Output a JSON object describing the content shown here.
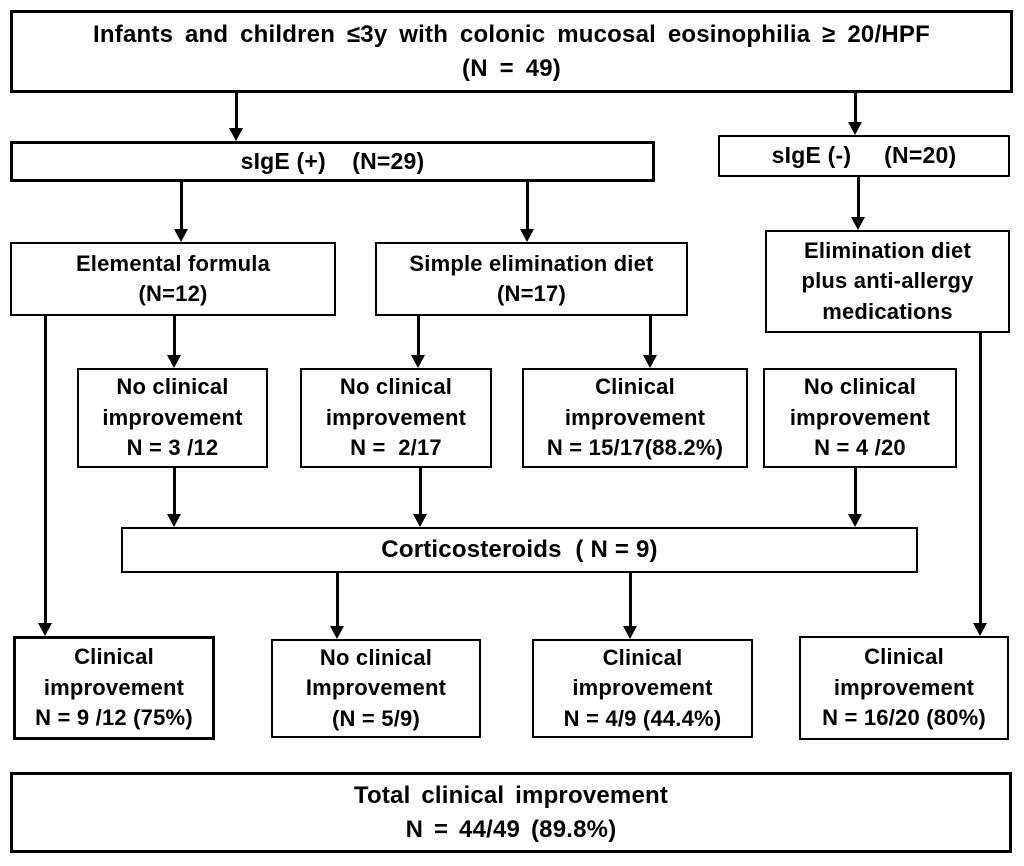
{
  "figure": {
    "background_color": "#ffffff",
    "line_color": "#000000",
    "text_color": "#000000"
  },
  "nodes": {
    "title": "Infants and children ≤3y with colonic mucosal eosinophilia ≥ 20/HPF\n(N = 49)",
    "sige_positive": "sIgE (+)    (N=29)",
    "sige_negative": "sIgE (-)     (N=20)",
    "elemental_formula": "Elemental formula\n(N=12)",
    "simple_elimination": "Simple elimination diet\n(N=17)",
    "elimination_diet_meds": "Elimination diet\nplus anti-allergy\nmedications",
    "no_improvement_3_12": "No clinical\nimprovement\nN = 3 /12",
    "no_improvement_2_17": "No clinical\nimprovement\nN =  2/17",
    "improvement_15_17": "Clinical\nimprovement\nN = 15/17(88.2%)",
    "no_improvement_4_20": "No clinical\nimprovement\nN = 4 /20",
    "corticosteroids": "Corticosteroids  ( N = 9)",
    "improvement_9_12": "Clinical\nimprovement\nN = 9 /12 (75%)",
    "no_improvement_5_9": "No clinical\nImprovement\n(N = 5/9)",
    "improvement_4_9": "Clinical\nimprovement\nN = 4/9 (44.4%)",
    "improvement_16_20": "Clinical\nimprovement\nN = 16/20 (80%)",
    "total": "Total clinical improvement\nN = 44/49 (89.8%)"
  },
  "edges": [
    {
      "from": "title",
      "to": "sige_positive"
    },
    {
      "from": "title",
      "to": "sige_negative"
    },
    {
      "from": "sige_positive",
      "to": "elemental_formula"
    },
    {
      "from": "sige_positive",
      "to": "simple_elimination"
    },
    {
      "from": "sige_negative",
      "to": "elimination_diet_meds"
    },
    {
      "from": "elemental_formula",
      "to": "no_improvement_3_12"
    },
    {
      "from": "elemental_formula",
      "to": "improvement_9_12"
    },
    {
      "from": "simple_elimination",
      "to": "no_improvement_2_17"
    },
    {
      "from": "simple_elimination",
      "to": "improvement_15_17"
    },
    {
      "from": "elimination_diet_meds",
      "to": "no_improvement_4_20"
    },
    {
      "from": "elimination_diet_meds",
      "to": "improvement_16_20"
    },
    {
      "from": "no_improvement_3_12",
      "to": "corticosteroids"
    },
    {
      "from": "no_improvement_2_17",
      "to": "corticosteroids"
    },
    {
      "from": "no_improvement_4_20",
      "to": "corticosteroids"
    },
    {
      "from": "corticosteroids",
      "to": "no_improvement_5_9"
    },
    {
      "from": "corticosteroids",
      "to": "improvement_4_9"
    }
  ]
}
